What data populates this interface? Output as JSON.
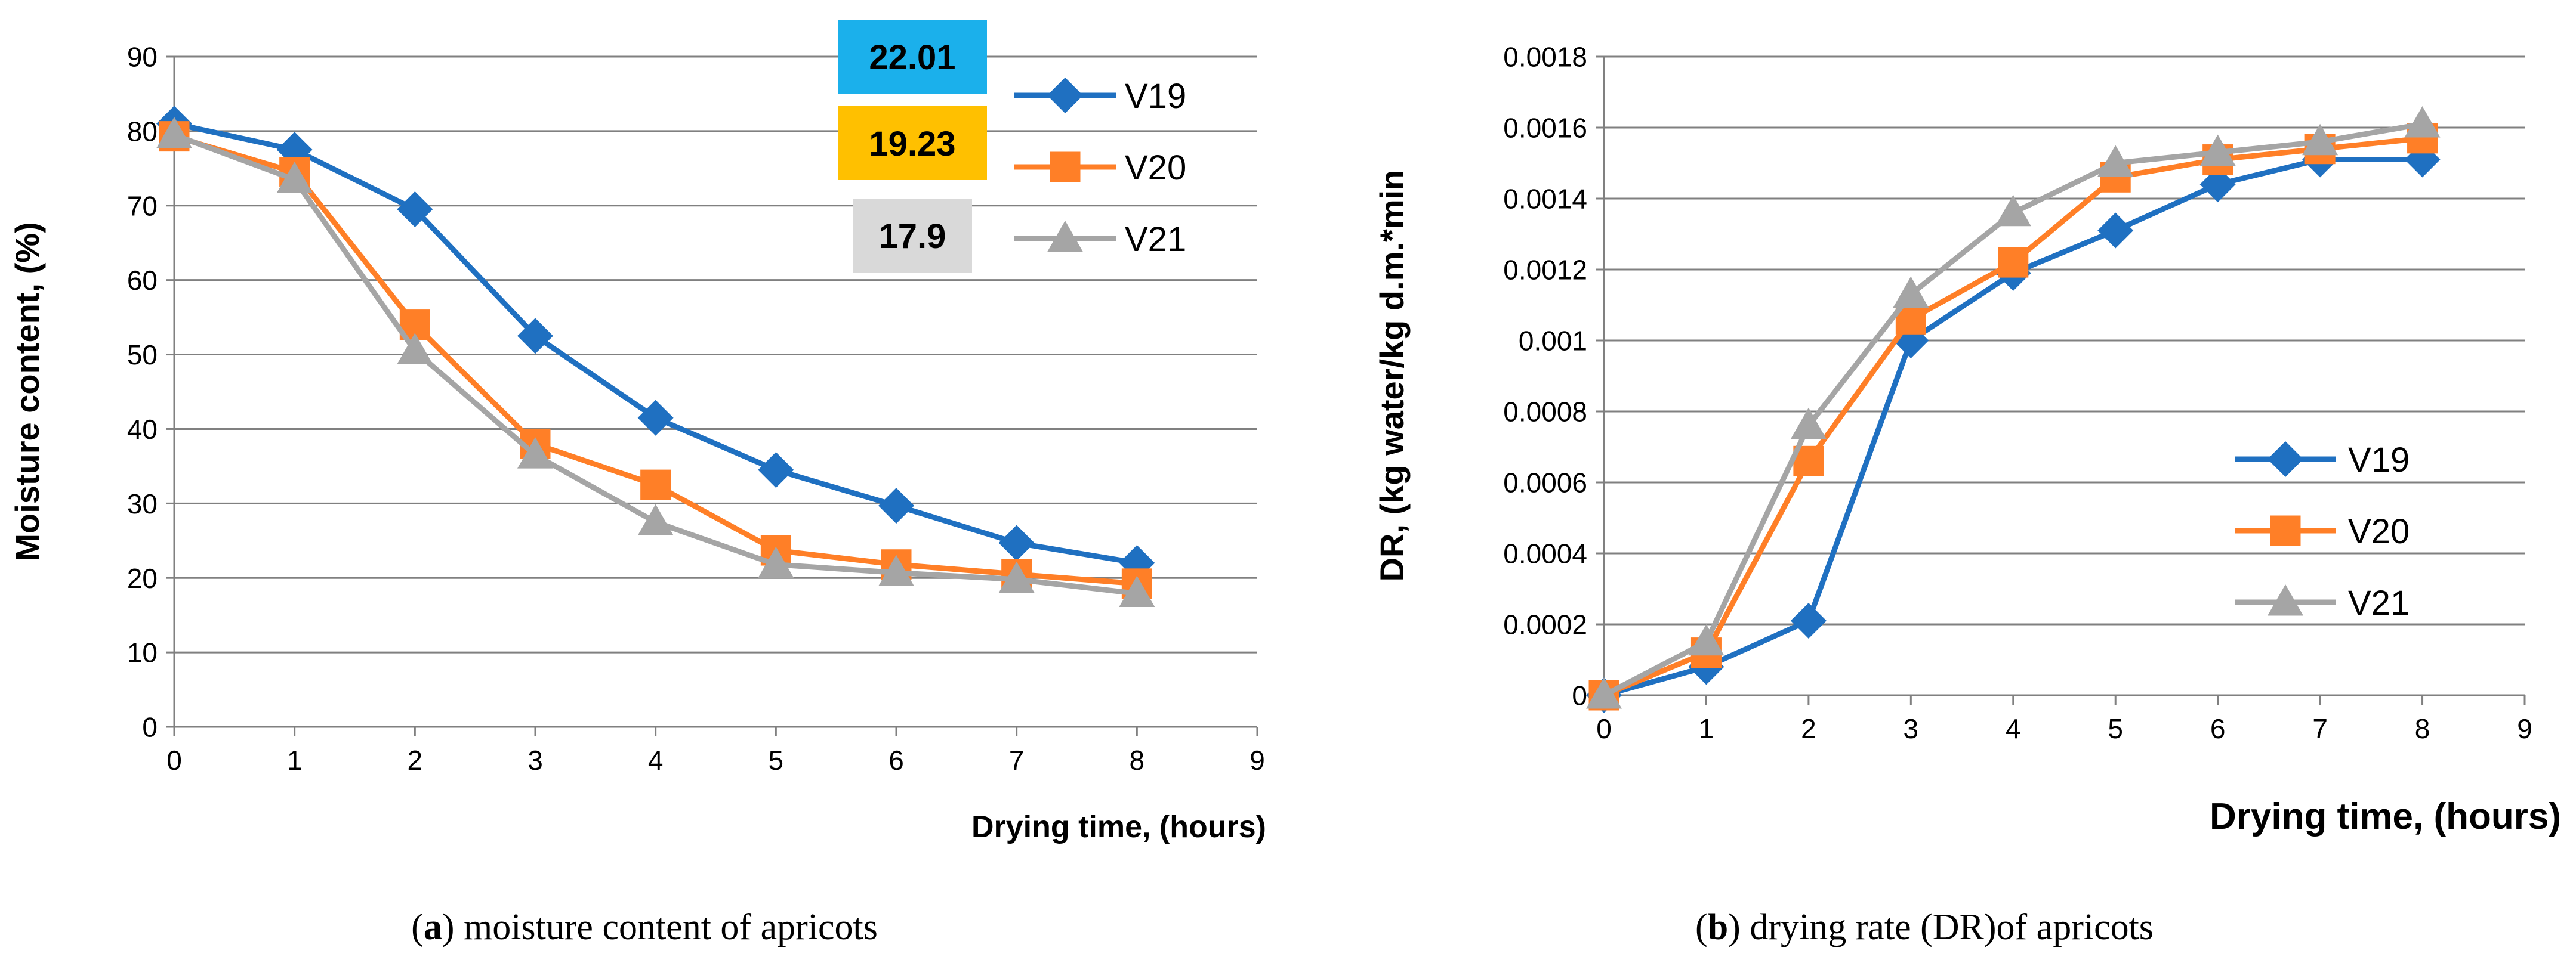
{
  "chart_data": [
    {
      "type": "line",
      "title": "",
      "xlabel": "Drying time, (hours)",
      "ylabel": "Moisture content, (%)",
      "xlim": [
        0,
        9
      ],
      "ylim": [
        0,
        90
      ],
      "x_ticks": [
        "0",
        "1",
        "2",
        "3",
        "4",
        "5",
        "6",
        "7",
        "8",
        "9"
      ],
      "y_ticks": [
        "0",
        "10",
        "20",
        "30",
        "40",
        "50",
        "60",
        "70",
        "80",
        "90"
      ],
      "grid": "horizontal",
      "legend_position": "top-right",
      "x": [
        0,
        1,
        2,
        3,
        4,
        5,
        6,
        7,
        8
      ],
      "series": [
        {
          "name": "V19",
          "values": [
            81,
            77.5,
            69.5,
            52.5,
            41.5,
            34.5,
            29.7,
            24.7,
            22.01
          ]
        },
        {
          "name": "V20",
          "values": [
            79.3,
            74.5,
            54,
            38,
            32.5,
            23.7,
            21.8,
            20.5,
            19.23
          ]
        },
        {
          "name": "V21",
          "values": [
            79.5,
            73.5,
            50.5,
            36.5,
            27.5,
            21.8,
            20.7,
            19.8,
            17.9
          ]
        }
      ],
      "annotations": [
        {
          "text": "22.01",
          "color": "#1bb0eb"
        },
        {
          "text": "19.23",
          "color": "#ffc000"
        },
        {
          "text": "17.9",
          "color": "#d9d9d9"
        }
      ],
      "caption_letter": "a",
      "caption_text": " moisture content of apricots"
    },
    {
      "type": "line",
      "title": "",
      "xlabel": "Drying time, (hours)",
      "ylabel": "DR, (kg water/kg d.m.*min",
      "xlim": [
        0,
        9
      ],
      "ylim": [
        0,
        0.0018
      ],
      "x_ticks": [
        "0",
        "1",
        "2",
        "3",
        "4",
        "5",
        "6",
        "7",
        "8",
        "9"
      ],
      "y_ticks": [
        "0",
        "0.0002",
        "0.0004",
        "0.0006",
        "0.0008",
        "0.001",
        "0.0012",
        "0.0014",
        "0.0016",
        "0.0018"
      ],
      "grid": "horizontal",
      "legend_position": "center-right",
      "x": [
        0,
        1,
        2,
        3,
        4,
        5,
        6,
        7,
        8
      ],
      "series": [
        {
          "name": "V19",
          "values": [
            0,
            8e-05,
            0.00021,
            0.001,
            0.00119,
            0.00131,
            0.00144,
            0.00151,
            0.00151
          ]
        },
        {
          "name": "V20",
          "values": [
            0,
            0.00012,
            0.00066,
            0.00106,
            0.00122,
            0.00146,
            0.00151,
            0.00154,
            0.00157
          ]
        },
        {
          "name": "V21",
          "values": [
            0,
            0.00015,
            0.00076,
            0.00113,
            0.00136,
            0.0015,
            0.00153,
            0.00156,
            0.00161
          ]
        }
      ],
      "caption_letter": "b",
      "caption_text": " drying rate (DR)of apricots"
    }
  ],
  "series_colors": {
    "V19": "#1f70c1",
    "V20": "#ff7f27",
    "V21": "#a5a5a5"
  },
  "series_markers": {
    "V19": "diamond",
    "V20": "square",
    "V21": "triangle"
  }
}
